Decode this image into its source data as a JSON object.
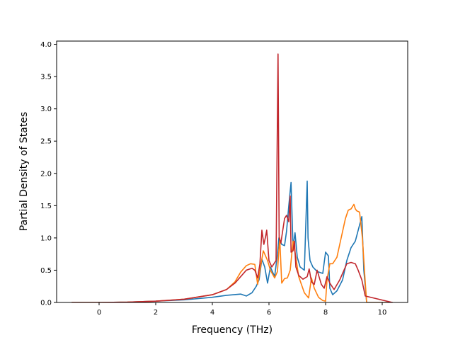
{
  "chart_data": {
    "type": "line",
    "title": "",
    "xlabel": "Frequency (THz)",
    "ylabel": "Partial Density of States",
    "xlim": [
      -1.5,
      10.9
    ],
    "ylim": [
      0.0,
      4.05
    ],
    "x_ticks": [
      0,
      2,
      4,
      6,
      8,
      10
    ],
    "y_ticks": [
      0.0,
      0.5,
      1.0,
      1.5,
      2.0,
      2.5,
      3.0,
      3.5,
      4.0
    ],
    "x_tick_labels": [
      "0",
      "2",
      "4",
      "6",
      "8",
      "10"
    ],
    "y_tick_labels": [
      "0.0",
      "0.5",
      "1.0",
      "1.5",
      "2.0",
      "2.5",
      "3.0",
      "3.5",
      "4.0"
    ],
    "grid": false,
    "legend": "none",
    "series": [
      {
        "color": "#1f77b4",
        "x": [
          -0.95,
          0.0,
          1.0,
          2.0,
          3.0,
          4.0,
          4.5,
          5.0,
          5.2,
          5.4,
          5.55,
          5.65,
          5.75,
          5.85,
          5.95,
          6.05,
          6.2,
          6.3,
          6.35,
          6.45,
          6.55,
          6.62,
          6.7,
          6.78,
          6.85,
          6.92,
          7.0,
          7.1,
          7.25,
          7.35,
          7.38,
          7.45,
          7.55,
          7.7,
          7.9,
          8.0,
          8.1,
          8.15,
          8.25,
          8.4,
          8.6,
          8.75,
          8.9,
          9.05,
          9.2,
          9.28,
          9.35,
          9.45,
          10.35
        ],
        "y": [
          0.0,
          0.0,
          0.005,
          0.02,
          0.04,
          0.08,
          0.11,
          0.13,
          0.1,
          0.15,
          0.25,
          0.35,
          0.67,
          0.55,
          0.3,
          0.55,
          0.4,
          0.75,
          1.0,
          0.9,
          0.88,
          1.1,
          1.5,
          1.86,
          0.85,
          1.08,
          0.7,
          0.55,
          0.5,
          1.88,
          1.0,
          0.65,
          0.55,
          0.48,
          0.45,
          0.78,
          0.72,
          0.22,
          0.12,
          0.18,
          0.35,
          0.65,
          0.85,
          0.95,
          1.2,
          1.33,
          0.5,
          0.0,
          0.0
        ]
      },
      {
        "color": "#ff7f0e",
        "x": [
          -0.95,
          0.0,
          1.0,
          2.0,
          3.0,
          4.0,
          4.5,
          4.8,
          5.0,
          5.2,
          5.35,
          5.5,
          5.6,
          5.72,
          5.8,
          5.95,
          6.05,
          6.2,
          6.3,
          6.38,
          6.45,
          6.55,
          6.65,
          6.75,
          6.85,
          6.95,
          7.05,
          7.25,
          7.4,
          7.5,
          7.6,
          7.75,
          7.9,
          8.0,
          8.05,
          8.15,
          8.25,
          8.4,
          8.55,
          8.7,
          8.8,
          8.9,
          9.0,
          9.05,
          9.1,
          9.2,
          9.3,
          9.38,
          9.45,
          10.35
        ],
        "y": [
          0.0,
          0.0,
          0.005,
          0.02,
          0.05,
          0.12,
          0.2,
          0.32,
          0.47,
          0.57,
          0.6,
          0.59,
          0.28,
          0.6,
          0.8,
          0.65,
          0.5,
          0.38,
          0.48,
          1.0,
          0.3,
          0.37,
          0.38,
          0.5,
          0.95,
          0.7,
          0.4,
          0.15,
          0.07,
          0.38,
          0.22,
          0.08,
          0.03,
          0.02,
          0.35,
          0.6,
          0.6,
          0.7,
          1.0,
          1.3,
          1.43,
          1.45,
          1.52,
          1.45,
          1.42,
          1.4,
          1.0,
          0.45,
          0.0,
          0.0
        ]
      },
      {
        "color": "#c1272d",
        "x": [
          -0.95,
          0.0,
          1.0,
          2.0,
          3.0,
          4.0,
          4.5,
          4.8,
          5.0,
          5.2,
          5.4,
          5.5,
          5.6,
          5.68,
          5.75,
          5.82,
          5.88,
          5.92,
          6.0,
          6.1,
          6.25,
          6.32,
          6.36,
          6.42,
          6.55,
          6.62,
          6.7,
          6.75,
          6.78,
          6.85,
          6.9,
          6.95,
          7.05,
          7.2,
          7.35,
          7.42,
          7.5,
          7.6,
          7.7,
          7.85,
          7.95,
          8.05,
          8.15,
          8.3,
          8.5,
          8.6,
          8.75,
          8.9,
          9.05,
          9.15,
          9.28,
          9.4,
          10.35
        ],
        "y": [
          0.0,
          0.0,
          0.005,
          0.02,
          0.05,
          0.12,
          0.2,
          0.3,
          0.4,
          0.5,
          0.53,
          0.5,
          0.38,
          0.6,
          1.12,
          0.9,
          1.02,
          1.12,
          0.65,
          0.55,
          0.65,
          3.85,
          1.0,
          0.92,
          1.3,
          1.35,
          1.25,
          1.65,
          0.78,
          0.8,
          0.95,
          0.55,
          0.42,
          0.36,
          0.4,
          0.52,
          0.32,
          0.28,
          0.5,
          0.28,
          0.22,
          0.4,
          0.3,
          0.2,
          0.35,
          0.45,
          0.6,
          0.62,
          0.6,
          0.5,
          0.35,
          0.1,
          0.0
        ]
      }
    ]
  }
}
